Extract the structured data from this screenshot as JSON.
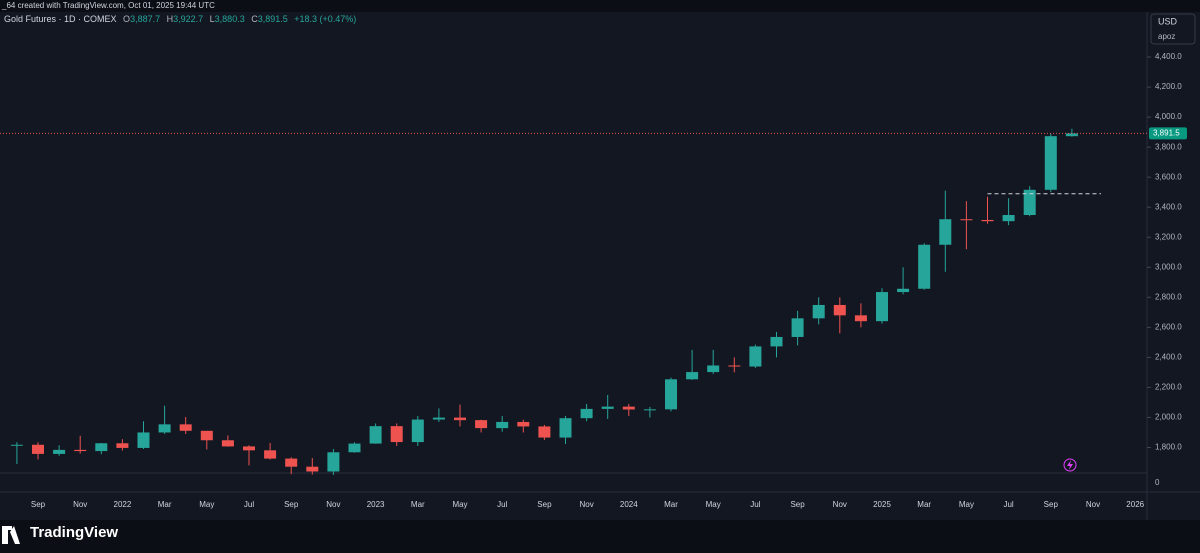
{
  "header": {
    "credit": "_64 created with TradingView.com, Oct 01, 2025 19:44 UTC",
    "symbol": "Gold Futures · 1D · COMEX",
    "open_label": "O",
    "open": "3,887.7",
    "high_label": "H",
    "high": "3,922.7",
    "low_label": "L",
    "low": "3,880.3",
    "close_label": "C",
    "close": "3,891.5",
    "change": "+18.3 (+0.47%)",
    "currency": "USD",
    "scale_mode": "apoz",
    "brand": "TradingView"
  },
  "chart_data": {
    "type": "candlestick",
    "categories": [
      null,
      "Sep",
      null,
      "Nov",
      null,
      "2022",
      null,
      "Mar",
      null,
      "May",
      null,
      "Jul",
      null,
      "Sep",
      null,
      "Nov",
      null,
      "2023",
      null,
      "Mar",
      null,
      "May",
      null,
      "Jul",
      null,
      "Sep",
      null,
      "Nov",
      null,
      "2024",
      null,
      "Mar",
      null,
      "May",
      null,
      "Jul",
      null,
      "Sep",
      null,
      "Nov",
      null,
      "2025",
      null,
      "Mar",
      null,
      "May",
      null,
      "Jul",
      null,
      "Sep",
      null,
      "Nov",
      null,
      "2026"
    ],
    "open": [
      1815,
      1818,
      1757,
      1784,
      1776,
      1828,
      1797,
      1900,
      1954,
      1911,
      1848,
      1807,
      1781,
      1726,
      1672,
      1640,
      1768,
      1826,
      1942,
      1836,
      1986,
      1999,
      1982,
      1929,
      1970,
      1940,
      1866,
      1995,
      2057,
      2072,
      2053,
      2054,
      2254,
      2302,
      2346,
      2339,
      2473,
      2536,
      2660,
      2749,
      2680,
      2641,
      2835,
      2857,
      3150,
      3320,
      3315,
      3307,
      3348,
      3516,
      3873,
      null,
      null,
      null
    ],
    "high": [
      1835,
      1835,
      1815,
      1878,
      1830,
      1855,
      1975,
      2078,
      2003,
      1910,
      1880,
      1815,
      1830,
      1735,
      1730,
      1790,
      1835,
      1960,
      1960,
      2010,
      2060,
      2085,
      1985,
      2010,
      1985,
      1950,
      2010,
      2090,
      2150,
      2090,
      2070,
      2265,
      2450,
      2450,
      2400,
      2485,
      2570,
      2710,
      2800,
      2800,
      2760,
      2860,
      3000,
      3160,
      3510,
      3440,
      3470,
      3460,
      3540,
      3890,
      3922.7,
      null,
      null,
      null
    ],
    "low": [
      1690,
      1720,
      1745,
      1760,
      1755,
      1780,
      1790,
      1890,
      1890,
      1787,
      1805,
      1681,
      1720,
      1622,
      1620,
      1617,
      1765,
      1825,
      1810,
      1810,
      1970,
      1940,
      1900,
      1905,
      1900,
      1850,
      1823,
      1975,
      1990,
      2010,
      2000,
      2040,
      2250,
      2290,
      2300,
      2330,
      2400,
      2480,
      2620,
      2560,
      2600,
      2625,
      2820,
      2850,
      2970,
      3120,
      3290,
      3280,
      3340,
      3500,
      3870,
      null,
      null,
      null
    ],
    "close": [
      1818,
      1757,
      1784,
      1776,
      1828,
      1797,
      1900,
      1954,
      1911,
      1848,
      1807,
      1781,
      1726,
      1672,
      1640,
      1768,
      1826,
      1942,
      1836,
      1986,
      1999,
      1982,
      1929,
      1970,
      1940,
      1866,
      1995,
      2057,
      2072,
      2053,
      2054,
      2254,
      2302,
      2346,
      2339,
      2473,
      2536,
      2660,
      2749,
      2680,
      2641,
      2835,
      2857,
      3150,
      3320,
      3315,
      3307,
      3348,
      3516,
      3873,
      3891.5,
      null,
      null,
      null
    ],
    "up_color": "#26a69a",
    "down_color": "#ef5350",
    "ylim": [
      1630,
      4700
    ],
    "yticks": [
      {
        "value": 1800,
        "label": "1,800.0"
      },
      {
        "value": 2000,
        "label": "2,000.0"
      },
      {
        "value": 2200,
        "label": "2,200.0"
      },
      {
        "value": 2400,
        "label": "2,400.0"
      },
      {
        "value": 2600,
        "label": "2,600.0"
      },
      {
        "value": 2800,
        "label": "2,800.0"
      },
      {
        "value": 3000,
        "label": "3,000.0"
      },
      {
        "value": 3200,
        "label": "3,200.0"
      },
      {
        "value": 3400,
        "label": "3,400.0"
      },
      {
        "value": 3600,
        "label": "3,600.0"
      },
      {
        "value": 3800,
        "label": "3,800.0"
      },
      {
        "value": 4000,
        "label": "4,000.0"
      },
      {
        "value": 4200,
        "label": "4,200.0"
      },
      {
        "value": 4400,
        "label": "4,400.0"
      }
    ],
    "last_price": {
      "value": 3891.5,
      "label": "3,891.5"
    },
    "level_line": 3490,
    "lower_pane_ticks": [
      0
    ],
    "grid": false
  }
}
